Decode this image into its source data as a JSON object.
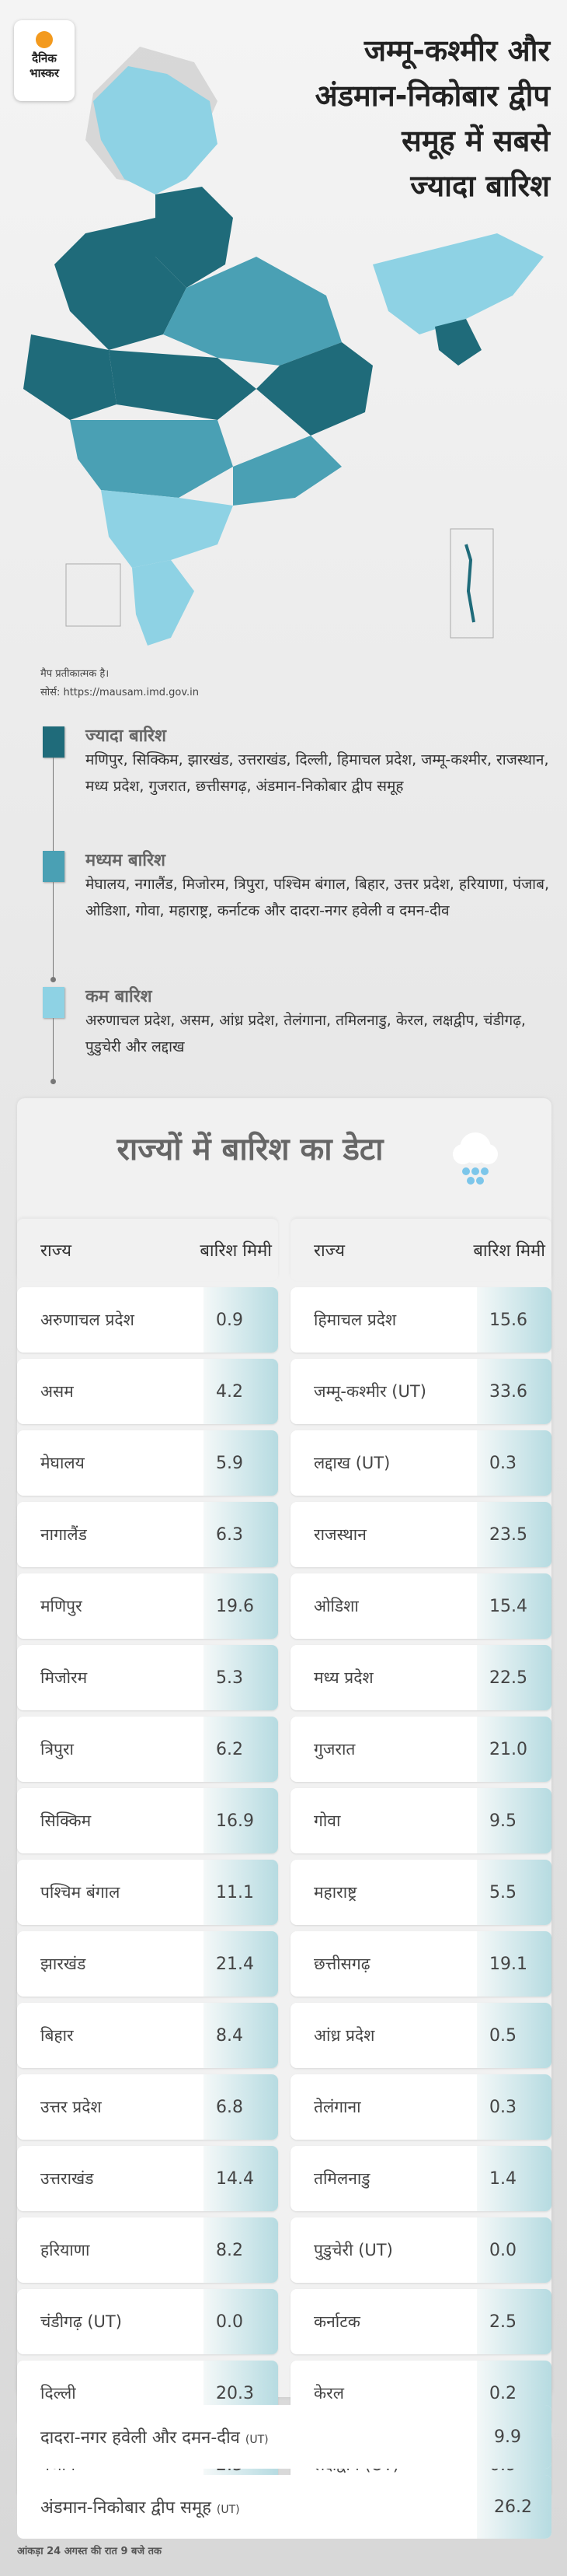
{
  "brand": {
    "line1": "दैनिक",
    "line2": "भास्कर"
  },
  "headline": [
    "जम्मू-कश्मीर और",
    "अंडमान-निकोबार द्वीप",
    "समूह में सबसे",
    "ज्यादा बारिश"
  ],
  "map_note": "मैप प्रतीकात्मक है।",
  "source": "सोर्स: https://mausam.imd.gov.in",
  "colors": {
    "high": "#1f6b7a",
    "medium": "#4aa0b4",
    "low": "#8ed2e4"
  },
  "legend": [
    {
      "title": "ज्यादा बारिश",
      "states": "मणिपुर, सिक्किम, झारखंड, उत्तराखंड, दिल्ली, हिमाचल प्रदेश, जम्मू-कश्मीर, राजस्थान, मध्य प्रदेश, गुजरात, छत्तीसगढ़, अंडमान-निकोबार द्वीप समूह"
    },
    {
      "title": "मध्यम बारिश",
      "states": "मेघालय, नगालैंड, मिजोरम, त्रिपुरा, पश्चिम बंगाल, बिहार, उत्तर प्रदेश, हरियाणा, पंजाब, ओडिशा, गोवा, महाराष्ट्र, कर्नाटक और दादरा-नगर हवेली व दमन-दीव"
    },
    {
      "title": "कम बारिश",
      "states": "अरुणाचल प्रदेश, असम, आंध्र प्रदेश, तेलंगाना, तमिलनाडु, केरल, लक्षद्वीप, चंडीगढ़, पुडुचेरी और लद्दाख"
    }
  ],
  "table": {
    "title": "राज्यों में बारिश का डेटा",
    "col_state": "राज्य",
    "col_rain": "बारिश मिमी",
    "left": [
      [
        "अरुणाचल प्रदेश",
        "0.9"
      ],
      [
        "असम",
        "4.2"
      ],
      [
        "मेघालय",
        "5.9"
      ],
      [
        "नागालैंड",
        "6.3"
      ],
      [
        "मणिपुर",
        "19.6"
      ],
      [
        "मिजोरम",
        "5.3"
      ],
      [
        "त्रिपुरा",
        "6.2"
      ],
      [
        "सिक्किम",
        "16.9"
      ],
      [
        "पश्चिम बंगाल",
        "11.1"
      ],
      [
        "झारखंड",
        "21.4"
      ],
      [
        "बिहार",
        "8.4"
      ],
      [
        "उत्तर प्रदेश",
        "6.8"
      ],
      [
        "उत्तराखंड",
        "14.4"
      ],
      [
        "हरियाणा",
        "8.2"
      ],
      [
        "चंडीगढ़ (UT)",
        "0.0"
      ],
      [
        "दिल्ली",
        "20.3"
      ],
      [
        "पंजाब",
        "2.5"
      ]
    ],
    "right": [
      [
        "हिमाचल प्रदेश",
        "15.6"
      ],
      [
        "जम्मू-कश्मीर (UT)",
        "33.6"
      ],
      [
        "लद्दाख (UT)",
        "0.3"
      ],
      [
        "राजस्थान",
        "23.5"
      ],
      [
        "ओडिशा",
        "15.4"
      ],
      [
        "मध्य प्रदेश",
        "22.5"
      ],
      [
        "गुजरात",
        "21.0"
      ],
      [
        "गोवा",
        "9.5"
      ],
      [
        "महाराष्ट्र",
        "5.5"
      ],
      [
        "छत्तीसगढ़",
        "19.1"
      ],
      [
        "आंध्र प्रदेश",
        "0.5"
      ],
      [
        "तेलंगाना",
        "0.3"
      ],
      [
        "तमिलनाडु",
        "1.4"
      ],
      [
        "पुडुचेरी (UT)",
        "0.0"
      ],
      [
        "कर्नाटक",
        "2.5"
      ],
      [
        "केरल",
        "0.2"
      ],
      [
        "लक्षद्वीप (UT)",
        "0.9"
      ]
    ],
    "full": [
      {
        "name": "दादरा-नगर हवेली और दमन-दीव",
        "ut": "(UT)",
        "value": "9.9"
      },
      {
        "name": "अंडमान-निकोबार द्वीप समूह",
        "ut": "(UT)",
        "value": "26.2"
      }
    ]
  },
  "footnote": "आंकड़ा 24 अगस्त की रात 9 बजे तक"
}
